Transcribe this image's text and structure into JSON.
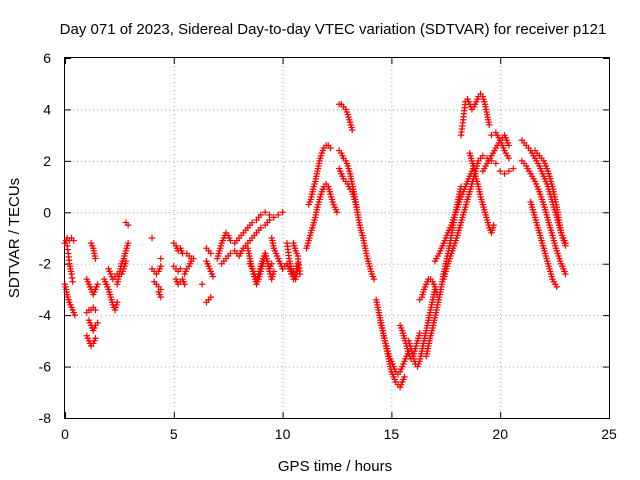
{
  "chart_data": {
    "type": "scatter",
    "title": "Day 071 of 2023, Sidereal Day-to-day VTEC variation (SDTVAR) for receiver p121",
    "xlabel": "GPS time / hours",
    "ylabel": "SDTVAR / TECUs",
    "xlim": [
      0,
      25
    ],
    "ylim": [
      -8,
      6
    ],
    "xticks": [
      "0",
      "5",
      "10",
      "15",
      "20",
      "25"
    ],
    "yticks": [
      "-8",
      "-6",
      "-4",
      "-2",
      "0",
      "2",
      "4",
      "6"
    ],
    "grid": true,
    "marker": "+",
    "color": "#ff0000",
    "segments": [
      {
        "x": [
          0.0,
          0.1,
          0.2,
          0.3,
          0.4
        ],
        "y": [
          -1.2,
          -1.0,
          -1.1,
          -1.0,
          -1.1
        ]
      },
      {
        "x": [
          0.0,
          0.05,
          0.1,
          0.2,
          0.3,
          0.4,
          0.45
        ],
        "y": [
          -2.8,
          -3.0,
          -3.2,
          -3.5,
          -3.7,
          -3.9,
          -4.0
        ]
      },
      {
        "x": [
          0.1,
          0.15,
          0.2,
          0.3,
          0.35
        ],
        "y": [
          -1.3,
          -1.6,
          -2.0,
          -2.4,
          -2.7
        ]
      },
      {
        "x": [
          1.0,
          1.1,
          1.2,
          1.3,
          1.4
        ],
        "y": [
          -4.8,
          -5.0,
          -5.2,
          -5.1,
          -4.9
        ]
      },
      {
        "x": [
          1.1,
          1.2,
          1.3,
          1.4,
          1.5
        ],
        "y": [
          -4.2,
          -4.4,
          -4.6,
          -4.4,
          -4.3
        ]
      },
      {
        "x": [
          1.0,
          1.1,
          1.2,
          1.3,
          1.4
        ],
        "y": [
          -3.9,
          -3.8,
          -3.8,
          -3.7,
          -3.8
        ]
      },
      {
        "x": [
          1.0,
          1.1,
          1.2,
          1.3,
          1.4,
          1.5
        ],
        "y": [
          -2.6,
          -2.8,
          -3.0,
          -3.2,
          -3.0,
          -2.8
        ]
      },
      {
        "x": [
          1.2,
          1.3,
          1.35,
          1.4
        ],
        "y": [
          -1.2,
          -1.4,
          -1.6,
          -1.8
        ]
      },
      {
        "x": [
          1.8,
          1.9,
          2.0,
          2.1,
          2.2,
          2.3,
          2.4
        ],
        "y": [
          -2.6,
          -2.8,
          -3.0,
          -3.3,
          -3.6,
          -3.8,
          -3.5
        ]
      },
      {
        "x": [
          2.0,
          2.1,
          2.2,
          2.3,
          2.4
        ],
        "y": [
          -2.2,
          -2.4,
          -2.6,
          -2.5,
          -2.4
        ]
      },
      {
        "x": [
          2.4,
          2.5,
          2.6,
          2.7,
          2.8,
          2.9
        ],
        "y": [
          -2.8,
          -2.4,
          -2.0,
          -1.8,
          -1.5,
          -1.2
        ]
      },
      {
        "x": [
          2.6,
          2.7,
          2.8
        ],
        "y": [
          -2.4,
          -2.2,
          -1.9
        ]
      },
      {
        "x": [
          2.8,
          2.9
        ],
        "y": [
          -0.4,
          -0.5
        ]
      },
      {
        "x": [
          4.0,
          4.1,
          4.2,
          4.3,
          4.4
        ],
        "y": [
          -2.2,
          -2.3,
          -2.4,
          -2.3,
          -2.1
        ]
      },
      {
        "x": [
          4.1,
          4.2,
          4.3,
          4.4
        ],
        "y": [
          -2.7,
          -2.8,
          -2.9,
          -3.0
        ]
      },
      {
        "x": [
          4.3,
          4.4
        ],
        "y": [
          -3.1,
          -3.3
        ]
      },
      {
        "x": [
          4.0
        ],
        "y": [
          -1.0
        ]
      },
      {
        "x": [
          4.4
        ],
        "y": [
          -1.8
        ]
      },
      {
        "x": [
          5.0,
          5.1,
          5.2,
          5.3,
          5.4
        ],
        "y": [
          -1.2,
          -1.3,
          -1.5,
          -1.4,
          -1.6
        ]
      },
      {
        "x": [
          5.0,
          5.1,
          5.2,
          5.3
        ],
        "y": [
          -2.1,
          -2.2,
          -2.3,
          -2.2
        ]
      },
      {
        "x": [
          5.1,
          5.2,
          5.3,
          5.4,
          5.5
        ],
        "y": [
          -2.6,
          -2.8,
          -2.7,
          -2.6,
          -2.8
        ]
      },
      {
        "x": [
          5.5,
          5.6,
          5.7,
          5.8,
          5.9
        ],
        "y": [
          -2.4,
          -2.2,
          -2.1,
          -1.9,
          -1.8
        ]
      },
      {
        "x": [
          5.6,
          5.7,
          5.8
        ],
        "y": [
          -1.6,
          -1.7,
          -1.8
        ]
      },
      {
        "x": [
          6.3
        ],
        "y": [
          -2.8
        ]
      },
      {
        "x": [
          6.5,
          6.6,
          6.7
        ],
        "y": [
          -3.5,
          -3.4,
          -3.3
        ]
      },
      {
        "x": [
          6.5,
          6.6,
          6.7,
          6.8
        ],
        "y": [
          -1.9,
          -2.1,
          -2.3,
          -2.5
        ]
      },
      {
        "x": [
          6.5,
          6.6,
          6.7
        ],
        "y": [
          -1.4,
          -1.5,
          -1.6
        ]
      },
      {
        "x": [
          7.0,
          7.1,
          7.2,
          7.3,
          7.4,
          7.5,
          7.6,
          7.8,
          8.0,
          8.2,
          8.4,
          8.6,
          8.8,
          9.0,
          9.2,
          9.4,
          9.6
        ],
        "y": [
          -1.8,
          -1.5,
          -1.2,
          -1.0,
          -0.8,
          -0.9,
          -1.1,
          -1.2,
          -1.0,
          -0.8,
          -0.6,
          -0.4,
          -0.3,
          -0.1,
          0.0,
          -0.1,
          -0.2
        ]
      },
      {
        "x": [
          7.2,
          7.4,
          7.6,
          7.8,
          8.0,
          8.2,
          8.4,
          8.6,
          8.8,
          9.0,
          9.2,
          9.4,
          9.6,
          9.8,
          10.0
        ],
        "y": [
          -2.0,
          -1.8,
          -1.6,
          -1.5,
          -1.7,
          -1.4,
          -1.2,
          -1.0,
          -0.8,
          -0.6,
          -0.5,
          -0.3,
          -0.2,
          -0.1,
          0.0
        ]
      },
      {
        "x": [
          8.4,
          8.5,
          8.6,
          8.7,
          8.8,
          8.9,
          9.0,
          9.1,
          9.2,
          9.3,
          9.4,
          9.5,
          9.6
        ],
        "y": [
          -1.4,
          -1.8,
          -2.2,
          -2.5,
          -2.8,
          -2.6,
          -2.3,
          -2.0,
          -1.6,
          -1.9,
          -2.3,
          -2.6,
          -2.3
        ]
      },
      {
        "x": [
          8.5,
          8.6,
          8.7,
          8.8,
          8.9,
          9.0,
          9.1,
          9.2,
          9.3,
          9.4,
          9.5
        ],
        "y": [
          -2.0,
          -2.2,
          -2.4,
          -2.6,
          -2.4,
          -2.1,
          -1.8,
          -1.6,
          -1.9,
          -2.2,
          -2.0
        ]
      },
      {
        "x": [
          9.5,
          9.6,
          9.7,
          9.8,
          9.9,
          10.0,
          10.1
        ],
        "y": [
          -1.0,
          -1.4,
          -1.6,
          -1.8,
          -2.0,
          -2.2,
          -2.1
        ]
      },
      {
        "x": [
          10.2,
          10.3,
          10.4,
          10.5,
          10.6,
          10.7
        ],
        "y": [
          -1.2,
          -1.8,
          -2.2,
          -2.6,
          -2.4,
          -2.0
        ]
      },
      {
        "x": [
          10.2,
          10.3,
          10.4,
          10.5,
          10.6,
          10.7
        ],
        "y": [
          -2.0,
          -2.2,
          -2.4,
          -2.3,
          -2.6,
          -2.2
        ]
      },
      {
        "x": [
          10.5,
          10.6,
          10.7,
          10.8
        ],
        "y": [
          -1.2,
          -1.5,
          -1.7,
          -2.4
        ]
      },
      {
        "x": [
          11.1,
          11.2,
          11.3,
          11.4,
          11.5,
          11.6,
          11.7,
          11.8,
          11.9,
          12.0,
          12.1,
          12.2,
          12.3,
          12.4,
          12.5
        ],
        "y": [
          -1.4,
          -1.1,
          -0.8,
          -0.5,
          -0.2,
          0.2,
          0.5,
          0.8,
          1.0,
          1.1,
          1.0,
          0.7,
          0.4,
          0.2,
          0.0
        ]
      },
      {
        "x": [
          11.2,
          11.3,
          11.4,
          11.5,
          11.6,
          11.7,
          11.8,
          11.9,
          12.0,
          12.1,
          12.2
        ],
        "y": [
          0.3,
          0.5,
          0.9,
          1.2,
          1.6,
          2.0,
          2.3,
          2.5,
          2.6,
          2.6,
          2.5
        ]
      },
      {
        "x": [
          12.6,
          12.7,
          12.8,
          12.9,
          13.0,
          13.1,
          13.2
        ],
        "y": [
          4.2,
          4.2,
          4.1,
          4.0,
          3.8,
          3.5,
          3.2
        ]
      },
      {
        "x": [
          12.6,
          12.7,
          12.8,
          12.9,
          13.0,
          13.1,
          13.2,
          13.3,
          13.4,
          13.5,
          13.6,
          13.7,
          13.8,
          13.9,
          14.0,
          14.1,
          14.2
        ],
        "y": [
          2.4,
          2.3,
          2.1,
          2.0,
          1.8,
          1.5,
          1.1,
          0.7,
          0.2,
          -0.3,
          -0.7,
          -1.0,
          -1.4,
          -1.8,
          -2.1,
          -2.4,
          -2.6
        ]
      },
      {
        "x": [
          12.6,
          12.7,
          12.8,
          12.9,
          13.0,
          13.1,
          13.2,
          13.3,
          13.4
        ],
        "y": [
          1.7,
          1.5,
          1.3,
          1.2,
          1.1,
          0.9,
          0.8,
          0.5,
          0.2
        ]
      },
      {
        "x": [
          14.3,
          14.4,
          14.5,
          14.6,
          14.7,
          14.8,
          14.9,
          15.0,
          15.1,
          15.2,
          15.3,
          15.4,
          15.5,
          15.6
        ],
        "y": [
          -3.4,
          -3.8,
          -4.2,
          -4.6,
          -5.0,
          -5.4,
          -5.8,
          -6.2,
          -6.4,
          -6.6,
          -6.7,
          -6.8,
          -6.6,
          -6.4
        ]
      },
      {
        "x": [
          14.5,
          14.6,
          14.7,
          14.8,
          14.9,
          15.0,
          15.1,
          15.2,
          15.3,
          15.4,
          15.5,
          15.6,
          15.7,
          15.8
        ],
        "y": [
          -4.3,
          -4.6,
          -5.0,
          -5.3,
          -5.6,
          -5.8,
          -6.0,
          -6.2,
          -6.3,
          -6.2,
          -6.0,
          -5.8,
          -5.6,
          -5.4
        ]
      },
      {
        "x": [
          15.4,
          15.5,
          15.6,
          15.7,
          15.8,
          15.9,
          16.0,
          16.1,
          16.2,
          16.3
        ],
        "y": [
          -4.4,
          -4.6,
          -4.9,
          -5.2,
          -5.5,
          -5.7,
          -5.6,
          -5.3,
          -5.0,
          -4.7
        ]
      },
      {
        "x": [
          15.8,
          15.9,
          16.0,
          16.1,
          16.2,
          16.3,
          16.4,
          16.5,
          16.6,
          16.7,
          16.8,
          16.9,
          17.0
        ],
        "y": [
          -5.0,
          -5.3,
          -5.6,
          -5.9,
          -6.0,
          -5.8,
          -5.4,
          -5.0,
          -4.6,
          -4.2,
          -3.8,
          -3.4,
          -3.0
        ]
      },
      {
        "x": [
          16.3,
          16.4,
          16.5,
          16.6,
          16.7,
          16.8,
          16.9,
          17.0,
          17.1
        ],
        "y": [
          -3.4,
          -3.3,
          -3.0,
          -2.8,
          -2.6,
          -2.6,
          -2.7,
          -2.9,
          -3.2
        ]
      },
      {
        "x": [
          16.6,
          16.7,
          16.8,
          16.9,
          17.0,
          17.1,
          17.2,
          17.3,
          17.4,
          17.5,
          17.6,
          17.7,
          17.8,
          17.9,
          18.0,
          18.1,
          18.2
        ],
        "y": [
          -5.6,
          -5.2,
          -4.8,
          -4.5,
          -4.1,
          -3.7,
          -3.3,
          -2.9,
          -2.4,
          -2.0,
          -1.6,
          -1.2,
          -0.7,
          -0.2,
          0.2,
          0.6,
          1.0
        ]
      },
      {
        "x": [
          17.0,
          17.2,
          17.4,
          17.6,
          17.8,
          18.0,
          18.2,
          18.4,
          18.6,
          18.8
        ],
        "y": [
          -1.9,
          -1.6,
          -1.2,
          -0.8,
          -0.4,
          0.1,
          0.6,
          1.0,
          1.4,
          1.8
        ]
      },
      {
        "x": [
          17.4,
          17.6,
          17.8,
          18.0,
          18.2,
          18.4,
          18.6,
          18.8,
          19.0,
          19.2,
          19.4,
          19.6,
          19.8
        ],
        "y": [
          -2.6,
          -2.0,
          -1.5,
          -1.0,
          -0.4,
          0.2,
          0.8,
          1.4,
          2.0,
          2.2,
          2.1,
          2.0,
          1.9
        ]
      },
      {
        "x": [
          18.2,
          18.3,
          18.4,
          18.5,
          18.6,
          18.7,
          18.8,
          18.9,
          19.0,
          19.1,
          19.2,
          19.3,
          19.4,
          19.5
        ],
        "y": [
          3.0,
          3.6,
          4.3,
          4.4,
          4.2,
          4.0,
          4.1,
          4.3,
          4.5,
          4.6,
          4.5,
          4.2,
          3.8,
          3.4
        ]
      },
      {
        "x": [
          18.6,
          18.7,
          18.8,
          18.9,
          19.0,
          19.1,
          19.2,
          19.3,
          19.4,
          19.5,
          19.6,
          19.7
        ],
        "y": [
          2.3,
          2.0,
          1.7,
          1.3,
          1.0,
          0.6,
          0.3,
          0.0,
          -0.3,
          -0.6,
          -0.8,
          -0.5
        ]
      },
      {
        "x": [
          19.2,
          19.4,
          19.6,
          19.8,
          20.0,
          20.2,
          20.4
        ],
        "y": [
          1.6,
          1.9,
          2.2,
          2.5,
          2.8,
          3.0,
          2.6
        ]
      },
      {
        "x": [
          19.6,
          19.8,
          20.0,
          20.2,
          20.4
        ],
        "y": [
          3.0,
          3.1,
          2.8,
          2.4,
          2.1
        ]
      },
      {
        "x": [
          20.0,
          20.2,
          20.4,
          20.6
        ],
        "y": [
          1.6,
          1.5,
          1.6,
          1.7
        ]
      },
      {
        "x": [
          21.0,
          21.2,
          21.4,
          21.6,
          21.8,
          22.0,
          22.2,
          22.4,
          22.6,
          22.8,
          23.0
        ],
        "y": [
          2.8,
          2.6,
          2.4,
          2.1,
          1.8,
          1.4,
          1.0,
          0.4,
          -0.2,
          -0.8,
          -1.3
        ]
      },
      {
        "x": [
          21.0,
          21.2,
          21.4,
          21.6,
          21.8,
          22.0,
          22.2,
          22.4,
          22.6,
          22.8,
          23.0
        ],
        "y": [
          2.0,
          1.8,
          1.5,
          1.2,
          0.8,
          0.3,
          -0.3,
          -0.9,
          -1.5,
          -2.0,
          -2.4
        ]
      },
      {
        "x": [
          21.4,
          21.6,
          21.8,
          22.0,
          22.2,
          22.4,
          22.6
        ],
        "y": [
          0.4,
          -0.2,
          -0.8,
          -1.4,
          -2.0,
          -2.6,
          -2.9
        ]
      },
      {
        "x": [
          21.6,
          21.8,
          22.0,
          22.2,
          22.4,
          22.6,
          22.8,
          23.0
        ],
        "y": [
          2.4,
          2.2,
          2.0,
          1.6,
          1.0,
          0.2,
          -0.8,
          -1.2
        ]
      }
    ]
  }
}
